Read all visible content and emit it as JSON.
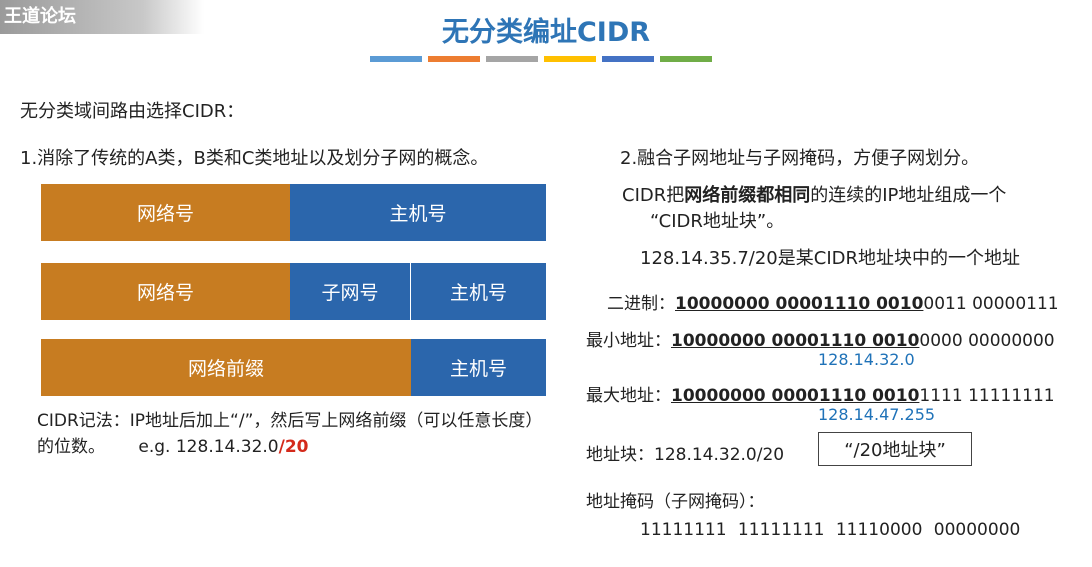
{
  "watermark": "王道论坛",
  "title": "无分类编址CIDR",
  "stripe_colors": [
    "#5b9bd5",
    "#ed7d31",
    "#a5a5a5",
    "#ffc000",
    "#4472c4",
    "#70ad47"
  ],
  "intro": "无分类域间路由选择CIDR：",
  "point1": "1.消除了传统的A类，B类和C类地址以及划分子网的概念。",
  "point2": "2.融合子网地址与子网掩码，方便子网划分。",
  "diagrams": {
    "row1": {
      "net": "网络号",
      "host": "主机号"
    },
    "row2": {
      "net": "网络号",
      "subnet": "子网号",
      "host": "主机号"
    },
    "row3": {
      "prefix": "网络前缀",
      "host": "主机号"
    }
  },
  "cidr_note": {
    "text": "CIDR记法：IP地址后加上“/”，然后写上网络前缀（可以任意长度）的位数。",
    "eg_prefix": "e.g. 128.14.32.0",
    "eg_suffix": "/20"
  },
  "description": {
    "part1": "CIDR把",
    "bold": "网络前缀都相同",
    "part2": "的连续的IP地址组成一个",
    "line2": "“CIDR地址块”。"
  },
  "example": "128.14.35.7/20是某CIDR地址块中的一个地址",
  "binary": {
    "label": "二进制：",
    "underlined": "10000000 00001110 0010",
    "rest": "0011 00000111"
  },
  "min_addr": {
    "label": "最小地址：",
    "underlined": "10000000 00001110 0010",
    "rest": "0000 00000000",
    "dotted": "128.14.32.0"
  },
  "max_addr": {
    "label": "最大地址：",
    "underlined": "10000000 00001110 0010",
    "rest": "1111 11111111",
    "dotted": "128.14.47.255"
  },
  "block": {
    "label": "地址块：128.14.32.0/20",
    "box": "“/20地址块”"
  },
  "mask": {
    "label": "地址掩码（子网掩码）：",
    "value": "11111111 11111111 11110000 00000000"
  }
}
